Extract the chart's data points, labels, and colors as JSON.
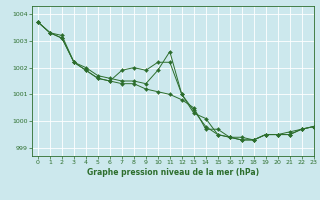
{
  "title": "Graphe pression niveau de la mer (hPa)",
  "bg_color": "#cce8ed",
  "grid_color": "#ffffff",
  "line_color": "#2d6e2d",
  "xlim": [
    -0.5,
    23
  ],
  "ylim": [
    998.7,
    1004.3
  ],
  "yticks": [
    999,
    1000,
    1001,
    1002,
    1003,
    1004
  ],
  "xticks": [
    0,
    1,
    2,
    3,
    4,
    5,
    6,
    7,
    8,
    9,
    10,
    11,
    12,
    13,
    14,
    15,
    16,
    17,
    18,
    19,
    20,
    21,
    22,
    23
  ],
  "series": [
    [
      1003.7,
      1003.3,
      1003.1,
      1002.2,
      1001.9,
      1001.6,
      1001.5,
      1001.4,
      1001.4,
      1001.2,
      1001.1,
      1001.0,
      1000.8,
      1000.5,
      999.7,
      999.7,
      999.4,
      999.4,
      999.3,
      999.5,
      999.5,
      999.6,
      999.7,
      999.8
    ],
    [
      1003.7,
      1003.3,
      1003.1,
      1002.2,
      1001.9,
      1001.6,
      1001.5,
      1001.9,
      1002.0,
      1001.9,
      1002.2,
      1002.2,
      1001.0,
      1000.3,
      1000.1,
      999.5,
      999.4,
      999.3,
      999.3,
      999.5,
      999.5,
      999.5,
      999.7,
      999.8
    ],
    [
      1003.7,
      1003.3,
      1003.2,
      1002.2,
      1002.0,
      1001.7,
      1001.6,
      1001.5,
      1001.5,
      1001.4,
      1001.9,
      1002.6,
      1001.0,
      1000.4,
      999.8,
      999.5,
      999.4,
      999.3,
      999.3,
      999.5,
      999.5,
      999.5,
      999.7,
      999.8
    ]
  ],
  "figsize": [
    3.2,
    2.0
  ],
  "dpi": 100
}
